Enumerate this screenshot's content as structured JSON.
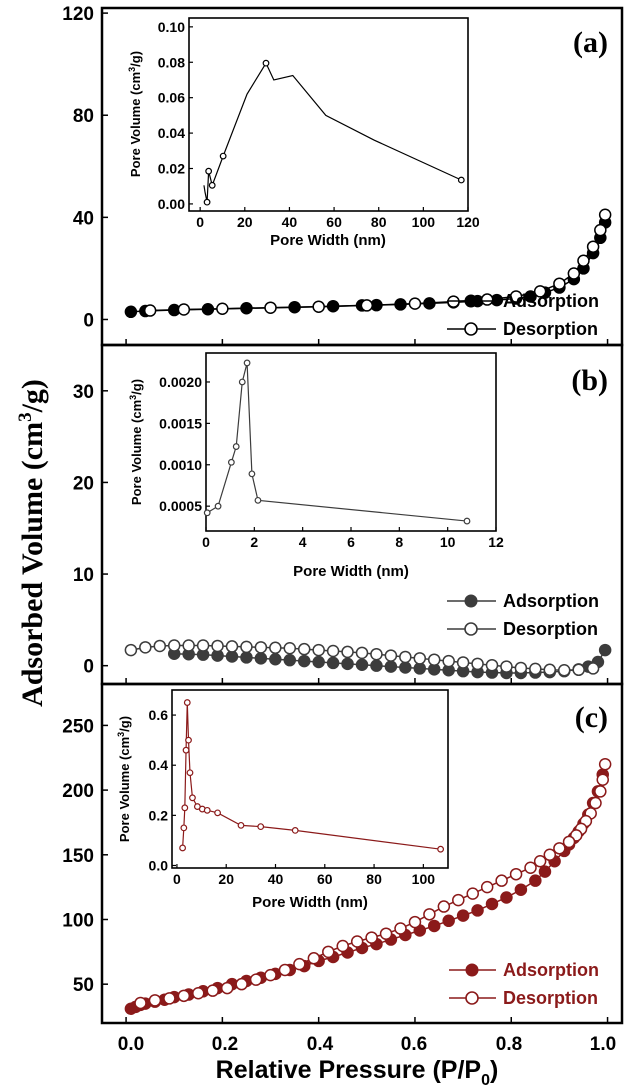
{
  "figure": {
    "ylabel_main": "Adsorbed Volume (cm",
    "ylabel_sup": "3",
    "ylabel_tail": "/g)",
    "xlabel_main": "Relative Pressure (P/P",
    "xlabel_sub": "0",
    "xlabel_tail": ")",
    "x_ticks": [
      "0.0",
      "0.2",
      "0.4",
      "0.6",
      "0.8",
      "1.0"
    ],
    "colors": {
      "a": "#000000",
      "b": "#3c3c3c",
      "c": "#8b1a1a"
    }
  },
  "chart_data": [
    {
      "type": "line",
      "panel_label": "(a)",
      "xlim": [
        -0.05,
        1.03
      ],
      "ylim": [
        -10,
        122
      ],
      "y_ticks": [
        0,
        40,
        80,
        120
      ],
      "legend": "bottom-right",
      "series": [
        {
          "name": "Adsorption",
          "marker": "filled",
          "x": [
            0.01,
            0.04,
            0.1,
            0.17,
            0.25,
            0.35,
            0.43,
            0.49,
            0.52,
            0.57,
            0.63,
            0.68,
            0.73,
            0.77,
            0.81,
            0.84,
            0.87,
            0.9,
            0.93,
            0.95,
            0.97,
            0.985,
            0.995
          ],
          "y": [
            3,
            3.3,
            3.7,
            4,
            4.4,
            4.8,
            5.2,
            5.5,
            5.6,
            5.9,
            6.3,
            6.7,
            7.2,
            7.6,
            8.2,
            9,
            10.5,
            12.5,
            15.8,
            20,
            26,
            32,
            38
          ]
        },
        {
          "name": "Desorption",
          "marker": "open",
          "x": [
            0.995,
            0.985,
            0.97,
            0.95,
            0.93,
            0.9,
            0.86,
            0.81,
            0.75,
            0.68,
            0.6,
            0.5,
            0.4,
            0.3,
            0.2,
            0.12,
            0.05
          ],
          "y": [
            41,
            35,
            28.5,
            23,
            18,
            14,
            11,
            9,
            7.8,
            7,
            6.2,
            5.5,
            5,
            4.6,
            4.2,
            3.9,
            3.5
          ]
        }
      ],
      "inset": {
        "xlabel": "Pore Width (nm)",
        "ylabel_main": "Pore Volume (cm",
        "ylabel_sup": "3",
        "ylabel_tail": "/g)",
        "xlim": [
          -5,
          120
        ],
        "ylim": [
          -0.004,
          0.105
        ],
        "x_ticks": [
          0,
          20,
          40,
          60,
          80,
          100,
          120
        ],
        "y_ticks": [
          "0.00",
          "0.02",
          "0.04",
          "0.06",
          "0.08",
          "0.10"
        ],
        "x": [
          1.7,
          2.2,
          3.1,
          3.8,
          5.4,
          10.3,
          21,
          29.5,
          33,
          41.5,
          56.3,
          78,
          117
        ],
        "y": [
          0.0105,
          0.0065,
          0.001,
          0.0185,
          0.0105,
          0.027,
          0.062,
          0.0795,
          0.07,
          0.0725,
          0.05,
          0.036,
          0.0135
        ],
        "markers_at": [
          2,
          3,
          4,
          5,
          7,
          12
        ]
      }
    },
    {
      "type": "line",
      "panel_label": "(b)",
      "xlim": [
        -0.05,
        1.03
      ],
      "ylim": [
        -2,
        35
      ],
      "y_ticks": [
        0,
        10,
        20,
        30
      ],
      "legend": "right",
      "series": [
        {
          "name": "Adsorption",
          "marker": "filled",
          "x": [
            0.1,
            0.13,
            0.16,
            0.19,
            0.22,
            0.25,
            0.28,
            0.31,
            0.34,
            0.37,
            0.4,
            0.43,
            0.46,
            0.49,
            0.52,
            0.55,
            0.58,
            0.61,
            0.64,
            0.67,
            0.7,
            0.73,
            0.76,
            0.79,
            0.82,
            0.85,
            0.88,
            0.91,
            0.94,
            0.96,
            0.98,
            0.995
          ],
          "y": [
            1.3,
            1.25,
            1.2,
            1.1,
            1.0,
            0.9,
            0.8,
            0.7,
            0.6,
            0.5,
            0.4,
            0.3,
            0.2,
            0.1,
            0.0,
            -0.1,
            -0.2,
            -0.3,
            -0.4,
            -0.5,
            -0.6,
            -0.7,
            -0.75,
            -0.8,
            -0.8,
            -0.75,
            -0.7,
            -0.6,
            -0.4,
            -0.1,
            0.4,
            1.7
          ]
        },
        {
          "name": "Desorption",
          "marker": "open",
          "x": [
            0.01,
            0.04,
            0.07,
            0.1,
            0.13,
            0.16,
            0.19,
            0.22,
            0.25,
            0.28,
            0.31,
            0.34,
            0.37,
            0.4,
            0.43,
            0.46,
            0.49,
            0.52,
            0.55,
            0.58,
            0.61,
            0.64,
            0.67,
            0.7,
            0.73,
            0.76,
            0.79,
            0.82,
            0.85,
            0.88,
            0.91,
            0.94,
            0.97
          ],
          "y": [
            1.7,
            2.0,
            2.15,
            2.2,
            2.2,
            2.2,
            2.15,
            2.1,
            2.05,
            2.0,
            1.95,
            1.9,
            1.8,
            1.7,
            1.6,
            1.5,
            1.4,
            1.25,
            1.1,
            0.95,
            0.8,
            0.65,
            0.5,
            0.35,
            0.2,
            0.05,
            -0.1,
            -0.25,
            -0.35,
            -0.45,
            -0.5,
            -0.45,
            -0.3
          ]
        }
      ],
      "inset": {
        "xlabel": "Pore Width (nm)",
        "ylabel_main": "Pore Volume (cm",
        "ylabel_sup": "3",
        "ylabel_tail": "/g)",
        "xlim": [
          0,
          12
        ],
        "ylim": [
          0.0002,
          0.00235
        ],
        "x_ticks": [
          0,
          2,
          4,
          6,
          8,
          10,
          12
        ],
        "y_ticks": [
          "0.0005",
          "0.0010",
          "0.0015",
          "0.0020"
        ],
        "x": [
          0.05,
          0.5,
          1.05,
          1.25,
          1.5,
          1.7,
          1.9,
          2.15,
          10.8
        ],
        "y": [
          0.00042,
          0.0005,
          0.00103,
          0.00122,
          0.002,
          0.00223,
          0.00089,
          0.00057,
          0.00032
        ],
        "markers_at": [
          0,
          1,
          2,
          3,
          4,
          5,
          6,
          7,
          8
        ]
      }
    },
    {
      "type": "line",
      "panel_label": "(c)",
      "xlim": [
        -0.05,
        1.03
      ],
      "ylim": [
        20,
        282
      ],
      "y_ticks": [
        50,
        100,
        150,
        200,
        250
      ],
      "legend": "bottom-right",
      "series": [
        {
          "name": "Adsorption",
          "marker": "filled",
          "x": [
            0.01,
            0.02,
            0.03,
            0.04,
            0.06,
            0.08,
            0.1,
            0.13,
            0.16,
            0.19,
            0.22,
            0.25,
            0.28,
            0.31,
            0.34,
            0.37,
            0.4,
            0.43,
            0.46,
            0.49,
            0.52,
            0.55,
            0.58,
            0.61,
            0.64,
            0.67,
            0.7,
            0.73,
            0.76,
            0.79,
            0.82,
            0.85,
            0.87,
            0.89,
            0.91,
            0.92,
            0.93,
            0.94,
            0.95,
            0.96,
            0.97,
            0.98,
            0.99
          ],
          "y": [
            31,
            32.5,
            34,
            35,
            36.5,
            38,
            40,
            42,
            44.5,
            47,
            50,
            52.5,
            55,
            58,
            61,
            64,
            68,
            71,
            74.5,
            78,
            81,
            84.5,
            88,
            91.5,
            95,
            99,
            103,
            107,
            112,
            117,
            123,
            130,
            137,
            145,
            153,
            158,
            163,
            168,
            174,
            181,
            190,
            199,
            212
          ]
        },
        {
          "name": "Desorption",
          "marker": "open",
          "x": [
            0.995,
            0.99,
            0.985,
            0.975,
            0.965,
            0.955,
            0.945,
            0.935,
            0.92,
            0.9,
            0.88,
            0.86,
            0.84,
            0.81,
            0.78,
            0.75,
            0.72,
            0.69,
            0.66,
            0.63,
            0.6,
            0.57,
            0.54,
            0.51,
            0.48,
            0.45,
            0.42,
            0.39,
            0.36,
            0.33,
            0.3,
            0.27,
            0.24,
            0.21,
            0.18,
            0.15,
            0.12,
            0.09,
            0.06,
            0.03
          ],
          "y": [
            220,
            208,
            199,
            190,
            182,
            176,
            170,
            165,
            160,
            155,
            150,
            145,
            140,
            135,
            130,
            125,
            120,
            115,
            110,
            104,
            98,
            93,
            89,
            86,
            83,
            79.5,
            75,
            70,
            65.5,
            61,
            57,
            53.5,
            50,
            47,
            45,
            43,
            41,
            39,
            37.5,
            35.5
          ]
        }
      ],
      "inset": {
        "xlabel": "Pore Width (nm)",
        "ylabel_main": "Pore Volume (cm",
        "ylabel_sup": "3",
        "ylabel_tail": "/g)",
        "xlim": [
          -2,
          110
        ],
        "ylim": [
          -0.01,
          0.7
        ],
        "x_ticks": [
          0,
          20,
          40,
          60,
          80,
          100
        ],
        "y_ticks": [
          "0.0",
          "0.2",
          "0.4",
          "0.6"
        ],
        "x": [
          2.3,
          2.8,
          3.2,
          3.7,
          4.2,
          4.7,
          5.3,
          6.3,
          8.3,
          10.3,
          12.3,
          16.5,
          26,
          34,
          48,
          107
        ],
        "y": [
          0.07,
          0.15,
          0.23,
          0.46,
          0.65,
          0.5,
          0.37,
          0.27,
          0.235,
          0.225,
          0.22,
          0.21,
          0.16,
          0.155,
          0.14,
          0.065
        ],
        "markers_at": [
          0,
          1,
          2,
          3,
          4,
          5,
          6,
          7,
          8,
          9,
          10,
          11,
          12,
          13,
          14,
          15
        ]
      }
    }
  ]
}
